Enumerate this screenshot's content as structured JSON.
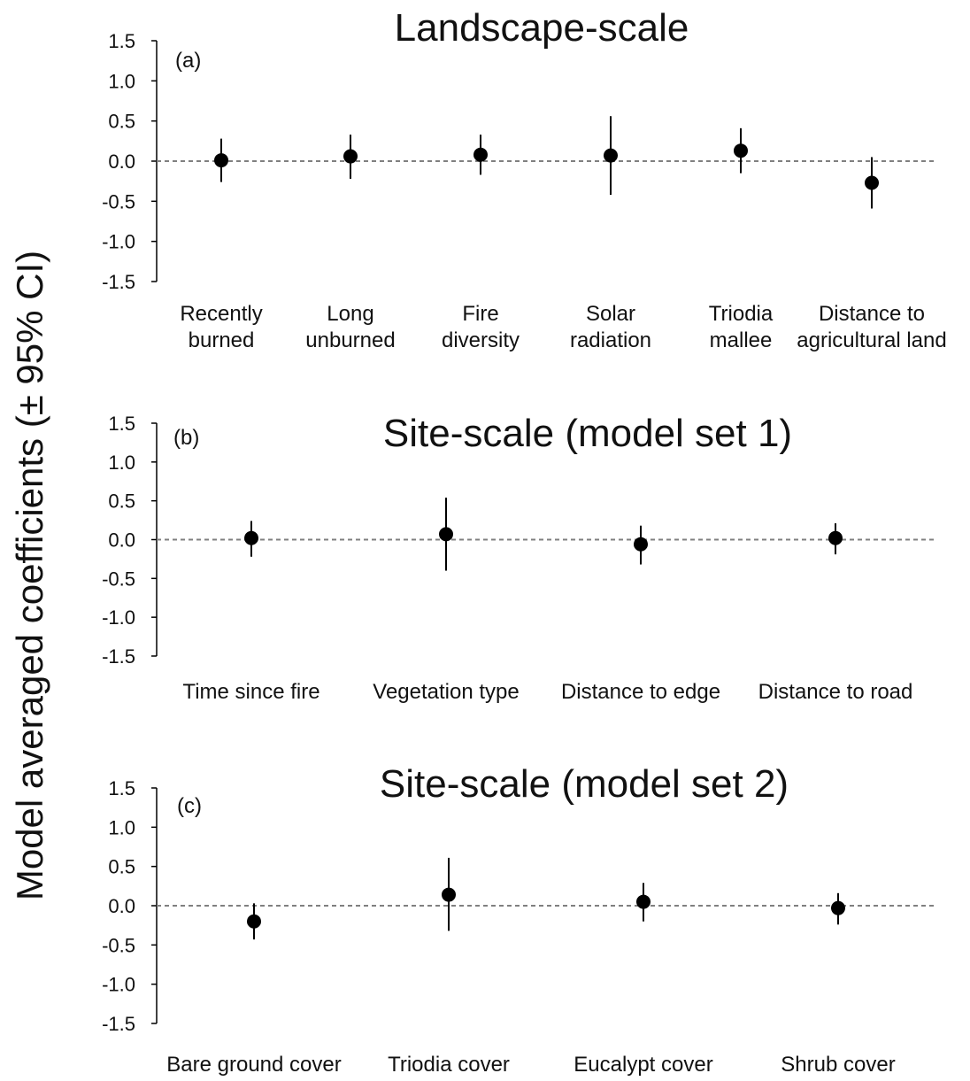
{
  "figure": {
    "ylabel": "Model averaged coefficients (± 95% CI)",
    "colors": {
      "point": "#000000",
      "axis": "#000000",
      "zero_line": "#808080"
    }
  },
  "chart_data": [
    {
      "type": "scatter",
      "panel": "(a)",
      "title": "Landscape-scale",
      "ylim": [
        -1.5,
        1.5
      ],
      "yticks": [
        "1.5",
        "1.0",
        "0.5",
        "0.0",
        "-0.5",
        "-1.0",
        "-1.5"
      ],
      "categories": [
        [
          "Recently",
          "burned"
        ],
        [
          "Long",
          "unburned"
        ],
        [
          "Fire",
          "diversity"
        ],
        [
          "Solar",
          "radiation"
        ],
        [
          "Triodia",
          "mallee"
        ],
        [
          "Distance to",
          "agricultural land"
        ]
      ],
      "values": [
        0.01,
        0.06,
        0.08,
        0.07,
        0.13,
        -0.27
      ],
      "ci_low": [
        -0.26,
        -0.22,
        -0.17,
        -0.42,
        -0.15,
        -0.59
      ],
      "ci_high": [
        0.28,
        0.33,
        0.33,
        0.56,
        0.41,
        0.05
      ],
      "zero_line": true,
      "grid": false
    },
    {
      "type": "scatter",
      "panel": "(b)",
      "title": "Site-scale (model set 1)",
      "ylim": [
        -1.5,
        1.5
      ],
      "yticks": [
        "1.5",
        "1.0",
        "0.5",
        "0.0",
        "-0.5",
        "-1.0",
        "-1.5"
      ],
      "categories": [
        [
          "Time since fire"
        ],
        [
          "Vegetation type"
        ],
        [
          "Distance to edge"
        ],
        [
          "Distance to road"
        ]
      ],
      "values": [
        0.02,
        0.07,
        -0.06,
        0.02
      ],
      "ci_low": [
        -0.22,
        -0.4,
        -0.32,
        -0.19
      ],
      "ci_high": [
        0.24,
        0.54,
        0.18,
        0.21
      ],
      "zero_line": true,
      "grid": false
    },
    {
      "type": "scatter",
      "panel": "(c)",
      "title": "Site-scale (model set 2)",
      "ylim": [
        -1.5,
        1.5
      ],
      "yticks": [
        "1.5",
        "1.0",
        "0.5",
        "0.0",
        "-0.5",
        "-1.0",
        "-1.5"
      ],
      "categories": [
        [
          "Bare ground cover"
        ],
        [
          "Triodia cover"
        ],
        [
          "Eucalypt cover"
        ],
        [
          "Shrub cover"
        ]
      ],
      "values": [
        -0.2,
        0.14,
        0.05,
        -0.03
      ],
      "ci_low": [
        -0.43,
        -0.32,
        -0.2,
        -0.24
      ],
      "ci_high": [
        0.03,
        0.61,
        0.29,
        0.16
      ],
      "zero_line": true,
      "grid": false
    }
  ]
}
